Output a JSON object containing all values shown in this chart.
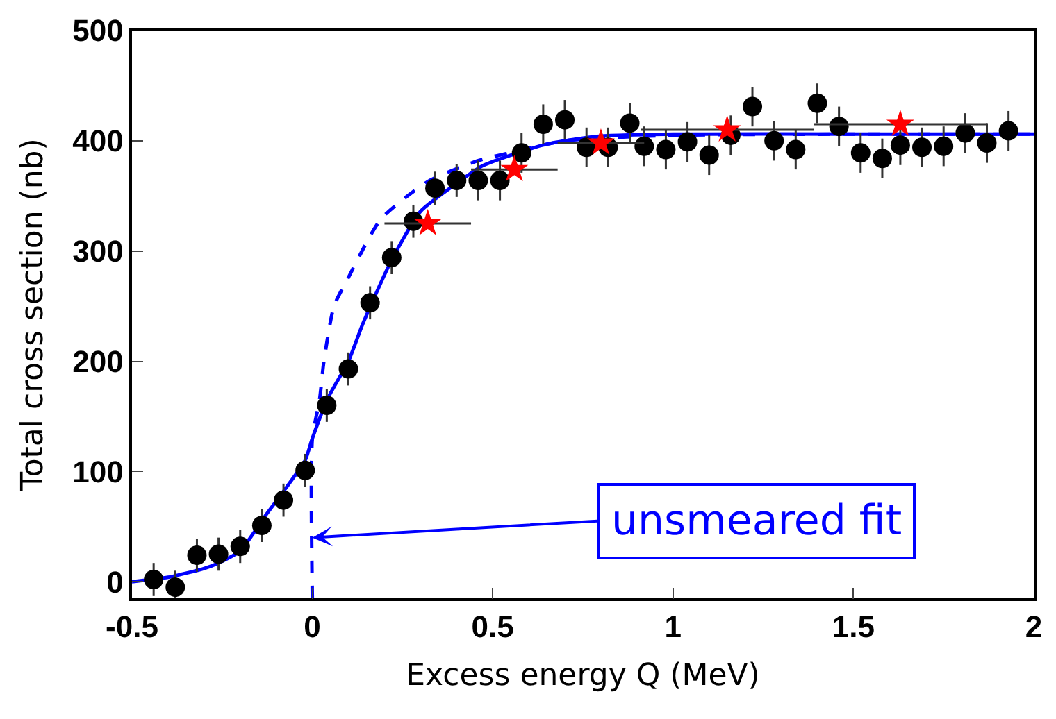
{
  "chart_data": {
    "type": "scatter",
    "xlabel": "Excess energy Q (MeV)",
    "ylabel": "Total cross section (nb)",
    "xlim": [
      -0.5,
      2
    ],
    "xticks": [
      -0.5,
      0,
      0.5,
      1,
      1.5,
      2
    ],
    "ylim": [
      -15,
      500
    ],
    "yticks": [
      0,
      100,
      200,
      300,
      400,
      500
    ],
    "series": [
      {
        "type": "line",
        "color": "#0000ff",
        "line_style": "solid",
        "marker": "none",
        "x": [
          -0.5,
          -0.4,
          -0.3,
          -0.26,
          -0.2,
          -0.13,
          -0.08,
          -0.02,
          0.0,
          0.044,
          0.1,
          0.14,
          0.22,
          0.3,
          0.39,
          0.47,
          0.56,
          0.65,
          0.79,
          1.0,
          1.5,
          2.0
        ],
        "values": [
          0,
          4,
          12,
          17,
          28,
          60,
          82,
          110,
          130,
          167,
          200,
          234,
          292,
          336,
          359,
          377,
          388,
          397,
          404,
          406,
          406,
          406
        ]
      },
      {
        "type": "line",
        "color": "#0000ff",
        "line_style": "dashed",
        "marker": "none",
        "x": [
          0.0,
          0.0,
          0.02,
          0.032,
          0.06,
          0.1,
          0.19,
          0.32,
          0.46,
          0.56,
          0.7,
          1.0,
          2.0
        ],
        "values": [
          -15,
          130,
          165,
          200,
          250,
          276,
          329,
          363,
          382,
          390,
          400,
          405,
          406
        ]
      },
      {
        "color": "#000000",
        "marker": "circle",
        "x": [
          -0.44,
          -0.38,
          -0.32,
          -0.26,
          -0.2,
          -0.14,
          -0.08,
          -0.02,
          0.04,
          0.1,
          0.16,
          0.22,
          0.28,
          0.34,
          0.4,
          0.46,
          0.52,
          0.58,
          0.64,
          0.7,
          0.76,
          0.82,
          0.88,
          0.92,
          0.98,
          1.04,
          1.1,
          1.16,
          1.22,
          1.28,
          1.34,
          1.4,
          1.46,
          1.52,
          1.58,
          1.63,
          1.69,
          1.75,
          1.81,
          1.87,
          1.93
        ],
        "values": [
          2,
          -5,
          24,
          25,
          32,
          51,
          74,
          101,
          160,
          193,
          253,
          294,
          327,
          357,
          364,
          364,
          364,
          389,
          415,
          419,
          394,
          394,
          416,
          395,
          392,
          399,
          387,
          405,
          431,
          400,
          392,
          434,
          413,
          389,
          384,
          396,
          394,
          395,
          407,
          398,
          409
        ],
        "errors": [
          15,
          15,
          15,
          15,
          15,
          15,
          15,
          15,
          15,
          15,
          15,
          15,
          15,
          15,
          15,
          18,
          18,
          18,
          18,
          18,
          18,
          18,
          18,
          18,
          18,
          18,
          18,
          18,
          18,
          18,
          18,
          18,
          18,
          18,
          18,
          18,
          18,
          18,
          18,
          18,
          18
        ]
      },
      {
        "color": "#ff0000",
        "marker": "star",
        "x": [
          0.32,
          0.56,
          0.8,
          1.15,
          1.63
        ],
        "values": [
          325,
          374,
          398,
          410,
          415
        ],
        "xerrors": [
          0.12,
          0.12,
          0.12,
          0.24,
          0.24
        ]
      }
    ],
    "annotations": [
      {
        "text": "unsmeared fit",
        "x": 0,
        "y": 40
      }
    ]
  }
}
